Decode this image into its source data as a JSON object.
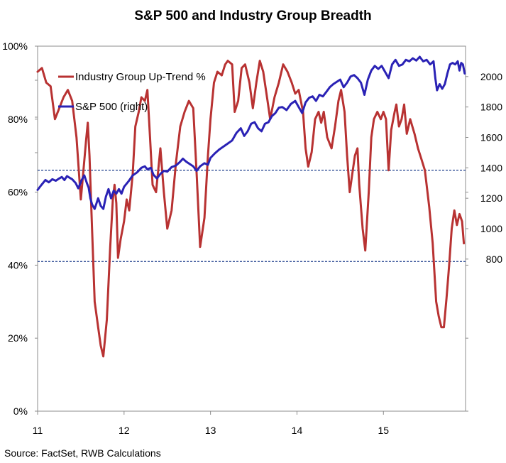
{
  "title": "S&P 500 and Industry Group Breadth",
  "source": "Source: FactSet, RWB Calculations",
  "chart_data": {
    "type": "line",
    "title": "S&P 500 and Industry Group Breadth",
    "x_tick_labels": [
      "11",
      "12",
      "13",
      "14",
      "15"
    ],
    "x_ticks": [
      2011,
      2012,
      2013,
      2014,
      2015
    ],
    "xlim": [
      2011.0,
      2015.95
    ],
    "left_axis": {
      "ylim": [
        0,
        100
      ],
      "tick_values": [
        0,
        20,
        40,
        60,
        80,
        100
      ],
      "tick_labels": [
        "0%",
        "20%",
        "40%",
        "60%",
        "80%",
        "100%"
      ]
    },
    "right_axis": {
      "ylim": [
        -200,
        2200
      ],
      "tick_values": [
        800,
        1000,
        1200,
        1400,
        1600,
        1800,
        2000
      ],
      "tick_labels": [
        "800",
        "1000",
        "1200",
        "1400",
        "1600",
        "1800",
        "2000"
      ]
    },
    "reference_lines": [
      66,
      41
    ],
    "reference_color": "#1f3e8c",
    "legend": {
      "placement": "top-left"
    },
    "series": [
      {
        "name": "Industry Group Up-Trend %",
        "axis": "left",
        "color": "#b83232",
        "points": [
          [
            2011.0,
            93
          ],
          [
            2011.05,
            94
          ],
          [
            2011.1,
            90
          ],
          [
            2011.15,
            89
          ],
          [
            2011.2,
            80
          ],
          [
            2011.25,
            83
          ],
          [
            2011.3,
            86
          ],
          [
            2011.35,
            88
          ],
          [
            2011.4,
            85
          ],
          [
            2011.45,
            75
          ],
          [
            2011.5,
            58
          ],
          [
            2011.53,
            66
          ],
          [
            2011.56,
            74
          ],
          [
            2011.58,
            79
          ],
          [
            2011.6,
            70
          ],
          [
            2011.63,
            50
          ],
          [
            2011.66,
            30
          ],
          [
            2011.7,
            23
          ],
          [
            2011.73,
            18
          ],
          [
            2011.76,
            15
          ],
          [
            2011.8,
            25
          ],
          [
            2011.84,
            45
          ],
          [
            2011.87,
            58
          ],
          [
            2011.89,
            62
          ],
          [
            2011.91,
            57
          ],
          [
            2011.93,
            42
          ],
          [
            2011.96,
            47
          ],
          [
            2012.0,
            52
          ],
          [
            2012.03,
            58
          ],
          [
            2012.06,
            55
          ],
          [
            2012.1,
            65
          ],
          [
            2012.13,
            78
          ],
          [
            2012.17,
            82
          ],
          [
            2012.2,
            86
          ],
          [
            2012.24,
            85
          ],
          [
            2012.27,
            88
          ],
          [
            2012.3,
            75
          ],
          [
            2012.33,
            62
          ],
          [
            2012.37,
            60
          ],
          [
            2012.42,
            72
          ],
          [
            2012.46,
            60
          ],
          [
            2012.5,
            50
          ],
          [
            2012.55,
            55
          ],
          [
            2012.6,
            68
          ],
          [
            2012.65,
            78
          ],
          [
            2012.7,
            82
          ],
          [
            2012.75,
            85
          ],
          [
            2012.8,
            83
          ],
          [
            2012.84,
            65
          ],
          [
            2012.88,
            45
          ],
          [
            2012.93,
            53
          ],
          [
            2012.97,
            70
          ],
          [
            2013.0,
            80
          ],
          [
            2013.04,
            90
          ],
          [
            2013.08,
            93
          ],
          [
            2013.13,
            92
          ],
          [
            2013.17,
            95
          ],
          [
            2013.2,
            96
          ],
          [
            2013.25,
            95
          ],
          [
            2013.28,
            82
          ],
          [
            2013.32,
            85
          ],
          [
            2013.36,
            94
          ],
          [
            2013.4,
            95
          ],
          [
            2013.45,
            90
          ],
          [
            2013.49,
            83
          ],
          [
            2013.53,
            90
          ],
          [
            2013.57,
            96
          ],
          [
            2013.61,
            93
          ],
          [
            2013.66,
            85
          ],
          [
            2013.69,
            80
          ],
          [
            2013.74,
            86
          ],
          [
            2013.79,
            90
          ],
          [
            2013.84,
            95
          ],
          [
            2013.89,
            93
          ],
          [
            2013.94,
            90
          ],
          [
            2013.98,
            87
          ],
          [
            2014.02,
            88
          ],
          [
            2014.07,
            82
          ],
          [
            2014.1,
            72
          ],
          [
            2014.13,
            67
          ],
          [
            2014.17,
            71
          ],
          [
            2014.21,
            80
          ],
          [
            2014.25,
            82
          ],
          [
            2014.28,
            79
          ],
          [
            2014.31,
            82
          ],
          [
            2014.35,
            75
          ],
          [
            2014.4,
            72
          ],
          [
            2014.44,
            78
          ],
          [
            2014.48,
            85
          ],
          [
            2014.51,
            88
          ],
          [
            2014.55,
            82
          ],
          [
            2014.58,
            70
          ],
          [
            2014.61,
            60
          ],
          [
            2014.64,
            65
          ],
          [
            2014.67,
            70
          ],
          [
            2014.7,
            72
          ],
          [
            2014.72,
            62
          ],
          [
            2014.76,
            50
          ],
          [
            2014.79,
            44
          ],
          [
            2014.83,
            60
          ],
          [
            2014.86,
            75
          ],
          [
            2014.89,
            80
          ],
          [
            2014.93,
            82
          ],
          [
            2014.97,
            80
          ],
          [
            2015.0,
            82
          ],
          [
            2015.03,
            80
          ],
          [
            2015.06,
            66
          ],
          [
            2015.09,
            77
          ],
          [
            2015.13,
            82
          ],
          [
            2015.15,
            84
          ],
          [
            2015.18,
            78
          ],
          [
            2015.21,
            80
          ],
          [
            2015.24,
            84
          ],
          [
            2015.27,
            76
          ],
          [
            2015.31,
            80
          ],
          [
            2015.36,
            76
          ],
          [
            2015.4,
            72
          ],
          [
            2015.44,
            69
          ],
          [
            2015.48,
            66
          ],
          [
            2015.53,
            56
          ],
          [
            2015.57,
            46
          ],
          [
            2015.61,
            30
          ],
          [
            2015.64,
            26
          ],
          [
            2015.67,
            23
          ],
          [
            2015.7,
            23
          ],
          [
            2015.73,
            31
          ],
          [
            2015.76,
            40
          ],
          [
            2015.79,
            50
          ],
          [
            2015.82,
            55
          ],
          [
            2015.85,
            51
          ],
          [
            2015.88,
            54
          ],
          [
            2015.91,
            52
          ],
          [
            2015.93,
            46
          ]
        ]
      },
      {
        "name": "S&P 500 (right)",
        "axis": "right",
        "color": "#2a22b5",
        "points": [
          [
            2011.0,
            1255
          ],
          [
            2011.04,
            1285
          ],
          [
            2011.09,
            1320
          ],
          [
            2011.13,
            1305
          ],
          [
            2011.17,
            1325
          ],
          [
            2011.21,
            1315
          ],
          [
            2011.25,
            1330
          ],
          [
            2011.28,
            1340
          ],
          [
            2011.31,
            1320
          ],
          [
            2011.34,
            1345
          ],
          [
            2011.37,
            1335
          ],
          [
            2011.4,
            1325
          ],
          [
            2011.44,
            1300
          ],
          [
            2011.47,
            1265
          ],
          [
            2011.51,
            1320
          ],
          [
            2011.54,
            1350
          ],
          [
            2011.57,
            1300
          ],
          [
            2011.59,
            1270
          ],
          [
            2011.61,
            1200
          ],
          [
            2011.63,
            1160
          ],
          [
            2011.66,
            1130
          ],
          [
            2011.7,
            1200
          ],
          [
            2011.73,
            1150
          ],
          [
            2011.76,
            1130
          ],
          [
            2011.79,
            1210
          ],
          [
            2011.82,
            1260
          ],
          [
            2011.85,
            1200
          ],
          [
            2011.88,
            1250
          ],
          [
            2011.91,
            1230
          ],
          [
            2011.94,
            1260
          ],
          [
            2011.97,
            1230
          ],
          [
            2012.0,
            1275
          ],
          [
            2012.05,
            1310
          ],
          [
            2012.1,
            1350
          ],
          [
            2012.15,
            1370
          ],
          [
            2012.2,
            1400
          ],
          [
            2012.24,
            1410
          ],
          [
            2012.27,
            1390
          ],
          [
            2012.31,
            1400
          ],
          [
            2012.34,
            1355
          ],
          [
            2012.38,
            1330
          ],
          [
            2012.42,
            1360
          ],
          [
            2012.46,
            1380
          ],
          [
            2012.5,
            1375
          ],
          [
            2012.55,
            1405
          ],
          [
            2012.6,
            1415
          ],
          [
            2012.64,
            1435
          ],
          [
            2012.68,
            1460
          ],
          [
            2012.72,
            1440
          ],
          [
            2012.76,
            1425
          ],
          [
            2012.8,
            1410
          ],
          [
            2012.84,
            1380
          ],
          [
            2012.88,
            1410
          ],
          [
            2012.93,
            1430
          ],
          [
            2012.97,
            1420
          ],
          [
            2013.0,
            1465
          ],
          [
            2013.05,
            1495
          ],
          [
            2013.1,
            1520
          ],
          [
            2013.15,
            1540
          ],
          [
            2013.2,
            1560
          ],
          [
            2013.25,
            1580
          ],
          [
            2013.3,
            1630
          ],
          [
            2013.35,
            1660
          ],
          [
            2013.39,
            1610
          ],
          [
            2013.43,
            1640
          ],
          [
            2013.47,
            1690
          ],
          [
            2013.51,
            1700
          ],
          [
            2013.55,
            1660
          ],
          [
            2013.59,
            1640
          ],
          [
            2013.63,
            1690
          ],
          [
            2013.67,
            1700
          ],
          [
            2013.71,
            1740
          ],
          [
            2013.75,
            1760
          ],
          [
            2013.79,
            1795
          ],
          [
            2013.83,
            1800
          ],
          [
            2013.88,
            1780
          ],
          [
            2013.93,
            1820
          ],
          [
            2013.98,
            1840
          ],
          [
            2014.02,
            1800
          ],
          [
            2014.06,
            1760
          ],
          [
            2014.1,
            1830
          ],
          [
            2014.14,
            1860
          ],
          [
            2014.18,
            1870
          ],
          [
            2014.22,
            1840
          ],
          [
            2014.26,
            1880
          ],
          [
            2014.3,
            1870
          ],
          [
            2014.34,
            1900
          ],
          [
            2014.38,
            1930
          ],
          [
            2014.42,
            1950
          ],
          [
            2014.46,
            1965
          ],
          [
            2014.5,
            1980
          ],
          [
            2014.54,
            1930
          ],
          [
            2014.58,
            1960
          ],
          [
            2014.62,
            2000
          ],
          [
            2014.66,
            2010
          ],
          [
            2014.7,
            1990
          ],
          [
            2014.74,
            1960
          ],
          [
            2014.78,
            1880
          ],
          [
            2014.82,
            1980
          ],
          [
            2014.86,
            2040
          ],
          [
            2014.9,
            2070
          ],
          [
            2014.94,
            2050
          ],
          [
            2014.98,
            2070
          ],
          [
            2015.02,
            2030
          ],
          [
            2015.06,
            1990
          ],
          [
            2015.1,
            2080
          ],
          [
            2015.14,
            2110
          ],
          [
            2015.18,
            2070
          ],
          [
            2015.22,
            2080
          ],
          [
            2015.26,
            2110
          ],
          [
            2015.3,
            2100
          ],
          [
            2015.34,
            2120
          ],
          [
            2015.38,
            2105
          ],
          [
            2015.42,
            2130
          ],
          [
            2015.46,
            2100
          ],
          [
            2015.5,
            2110
          ],
          [
            2015.54,
            2080
          ],
          [
            2015.58,
            2100
          ],
          [
            2015.6,
            1990
          ],
          [
            2015.62,
            1910
          ],
          [
            2015.65,
            1950
          ],
          [
            2015.68,
            1920
          ],
          [
            2015.71,
            1950
          ],
          [
            2015.74,
            2020
          ],
          [
            2015.77,
            2080
          ],
          [
            2015.8,
            2090
          ],
          [
            2015.83,
            2080
          ],
          [
            2015.86,
            2100
          ],
          [
            2015.88,
            2040
          ],
          [
            2015.9,
            2090
          ],
          [
            2015.92,
            2080
          ],
          [
            2015.94,
            2020
          ]
        ]
      }
    ]
  }
}
